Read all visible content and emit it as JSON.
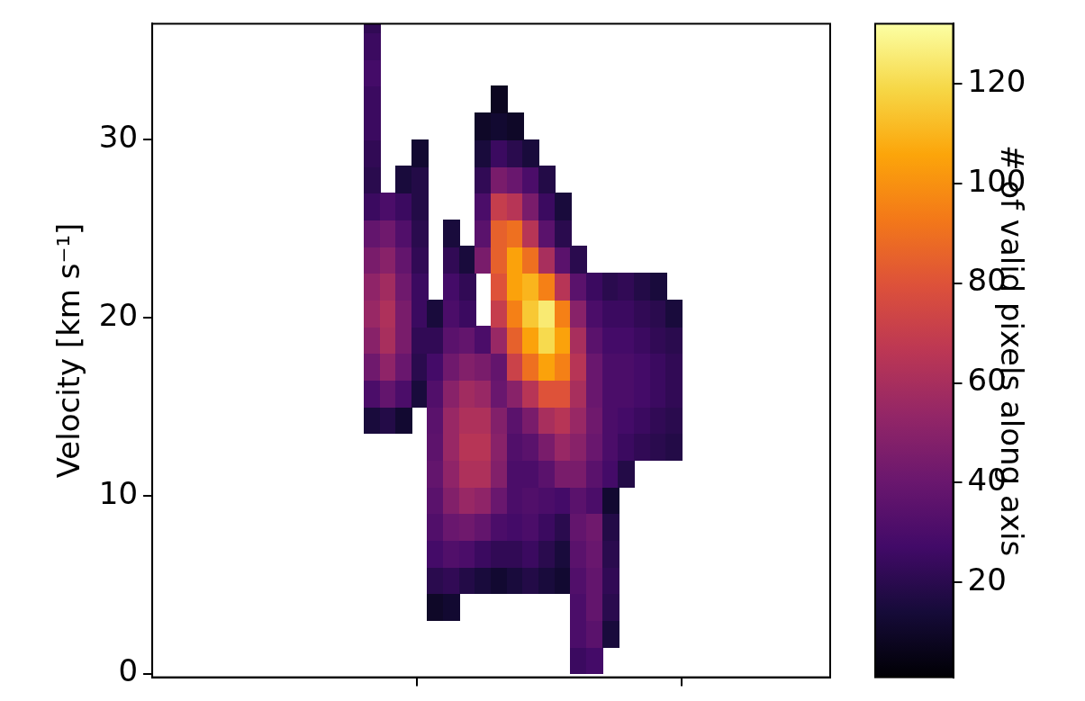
{
  "chart_data": {
    "type": "heatmap",
    "ylabel": "Velocity [km s⁻¹]",
    "xlim": [
      0,
      2.56
    ],
    "xticks": [
      1,
      2
    ],
    "ylim": [
      -0.2,
      36.5
    ],
    "yticks": [
      0,
      10,
      20,
      30
    ],
    "tick_labels": "y",
    "grid": false,
    "colorbar_label": "# of valid pixels along axis",
    "colorbar_range": [
      1,
      132
    ],
    "colorbar_ticks": [
      20,
      40,
      60,
      80,
      100,
      120
    ],
    "cells": {
      "x": [
        0.83,
        0.89,
        0.95,
        1.01,
        1.07,
        1.13,
        1.19,
        1.25,
        1.31,
        1.37,
        1.43,
        1.49,
        1.55,
        1.61,
        1.67,
        1.73,
        1.79,
        1.85,
        1.91,
        1.97
      ],
      "y": [
        0.75,
        2.25,
        3.75,
        5.25,
        6.75,
        8.25,
        9.75,
        11.25,
        12.75,
        14.25,
        15.75,
        17.25,
        18.75,
        20.25,
        21.75,
        23.25,
        24.75,
        26.25,
        27.75,
        29.25,
        30.75,
        32.25,
        33.75,
        35.25,
        36.75
      ],
      "values": [
        [
          null,
          null,
          null,
          null,
          null,
          null,
          null,
          null,
          null,
          null,
          null,
          null,
          null,
          25,
          28,
          null,
          null,
          null,
          null,
          null
        ],
        [
          null,
          null,
          null,
          null,
          null,
          null,
          null,
          null,
          null,
          null,
          null,
          null,
          null,
          30,
          35,
          15,
          null,
          null,
          null,
          null
        ],
        [
          null,
          null,
          null,
          null,
          10,
          12,
          null,
          null,
          null,
          null,
          null,
          null,
          null,
          30,
          38,
          20,
          null,
          null,
          null,
          null
        ],
        [
          null,
          null,
          null,
          null,
          20,
          22,
          18,
          15,
          12,
          15,
          18,
          15,
          12,
          32,
          38,
          22,
          null,
          null,
          null,
          null
        ],
        [
          null,
          null,
          null,
          null,
          28,
          32,
          30,
          25,
          22,
          22,
          25,
          20,
          15,
          35,
          40,
          20,
          null,
          null,
          null,
          null
        ],
        [
          null,
          null,
          null,
          null,
          32,
          40,
          42,
          38,
          30,
          28,
          30,
          25,
          20,
          38,
          42,
          18,
          null,
          null,
          null,
          null
        ],
        [
          null,
          null,
          null,
          null,
          35,
          48,
          55,
          52,
          40,
          30,
          32,
          30,
          28,
          35,
          30,
          12,
          null,
          null,
          null,
          null
        ],
        [
          null,
          null,
          null,
          null,
          38,
          52,
          62,
          62,
          48,
          30,
          30,
          35,
          45,
          45,
          35,
          28,
          18,
          null,
          null,
          null
        ],
        [
          null,
          null,
          null,
          null,
          36,
          55,
          65,
          65,
          50,
          32,
          35,
          45,
          55,
          50,
          40,
          30,
          25,
          22,
          20,
          18
        ],
        [
          15,
          18,
          12,
          null,
          35,
          55,
          62,
          62,
          48,
          35,
          45,
          60,
          65,
          55,
          42,
          30,
          28,
          25,
          22,
          20
        ],
        [
          30,
          38,
          30,
          15,
          32,
          50,
          58,
          55,
          40,
          50,
          65,
          80,
          80,
          60,
          40,
          30,
          30,
          28,
          25,
          22
        ],
        [
          42,
          52,
          40,
          20,
          28,
          42,
          48,
          45,
          38,
          72,
          90,
          105,
          95,
          65,
          40,
          30,
          30,
          28,
          25,
          22
        ],
        [
          50,
          60,
          45,
          22,
          22,
          35,
          38,
          30,
          55,
          85,
          105,
          120,
          105,
          60,
          35,
          28,
          28,
          25,
          22,
          20
        ],
        [
          55,
          62,
          45,
          25,
          15,
          30,
          25,
          null,
          70,
          95,
          115,
          125,
          95,
          50,
          30,
          25,
          25,
          22,
          20,
          15
        ],
        [
          52,
          58,
          42,
          25,
          null,
          28,
          22,
          null,
          80,
          105,
          110,
          95,
          65,
          35,
          25,
          20,
          22,
          18,
          15,
          null
        ],
        [
          45,
          50,
          38,
          22,
          null,
          22,
          15,
          45,
          85,
          105,
          90,
          60,
          35,
          20,
          null,
          null,
          null,
          null,
          null,
          null
        ],
        [
          38,
          42,
          32,
          20,
          null,
          15,
          null,
          35,
          85,
          90,
          65,
          35,
          20,
          null,
          null,
          null,
          null,
          null,
          null,
          null
        ],
        [
          25,
          30,
          25,
          18,
          null,
          null,
          null,
          30,
          70,
          65,
          45,
          25,
          15,
          null,
          null,
          null,
          null,
          null,
          null,
          null
        ],
        [
          20,
          null,
          15,
          18,
          null,
          null,
          null,
          22,
          45,
          40,
          30,
          18,
          null,
          null,
          null,
          null,
          null,
          null,
          null,
          null
        ],
        [
          22,
          null,
          null,
          12,
          null,
          null,
          null,
          15,
          25,
          20,
          15,
          null,
          null,
          null,
          null,
          null,
          null,
          null,
          null,
          null
        ],
        [
          25,
          null,
          null,
          null,
          null,
          null,
          null,
          10,
          12,
          10,
          null,
          null,
          null,
          null,
          null,
          null,
          null,
          null,
          null,
          null
        ],
        [
          25,
          null,
          null,
          null,
          null,
          null,
          null,
          null,
          8,
          null,
          null,
          null,
          null,
          null,
          null,
          null,
          null,
          null,
          null,
          null
        ],
        [
          28,
          null,
          null,
          null,
          null,
          null,
          null,
          null,
          null,
          null,
          null,
          null,
          null,
          null,
          null,
          null,
          null,
          null,
          null,
          null
        ],
        [
          25,
          null,
          null,
          null,
          null,
          null,
          null,
          null,
          null,
          null,
          null,
          null,
          null,
          null,
          null,
          null,
          null,
          null,
          null,
          null
        ],
        [
          22,
          null,
          null,
          null,
          null,
          null,
          null,
          null,
          null,
          null,
          null,
          null,
          null,
          null,
          null,
          null,
          null,
          null,
          null,
          null
        ]
      ]
    }
  }
}
